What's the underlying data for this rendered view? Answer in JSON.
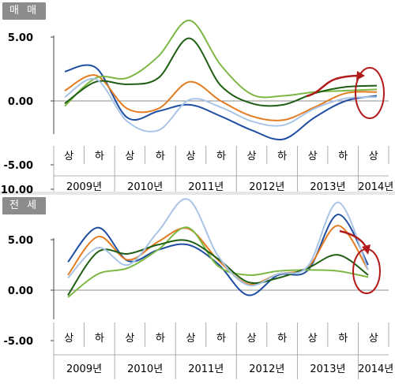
{
  "chart_data": [
    {
      "type": "line",
      "title": "매 매",
      "ylim": [
        -5,
        10
      ],
      "yticks": [
        "10.00",
        "5.00",
        "0.00",
        "-5.00"
      ],
      "x": [
        "2009 상",
        "2009 하",
        "2010 상",
        "2010 하",
        "2011 상",
        "2011 하",
        "2012 상",
        "2012 하",
        "2013 상",
        "2013 하",
        "2014 상"
      ],
      "half_labels": [
        "상",
        "하",
        "상",
        "하",
        "상",
        "하",
        "상",
        "하",
        "상",
        "하",
        "상"
      ],
      "year_labels": [
        "2009년",
        "2010년",
        "2011년",
        "2012년",
        "2013년",
        "2014년"
      ],
      "grid": false,
      "legend": "none",
      "series": [
        {
          "color": "#1f4ea3",
          "values": [
            2.3,
            2.6,
            -1.3,
            -0.8,
            -0.3,
            -1.2,
            -2.3,
            -3.0,
            -1.3,
            0.0,
            0.4
          ]
        },
        {
          "color": "#e37c21",
          "values": [
            0.8,
            2.0,
            -0.6,
            -0.6,
            1.5,
            0.0,
            -1.2,
            -1.5,
            -0.5,
            0.6,
            0.7
          ]
        },
        {
          "color": "#7db844",
          "values": [
            -0.4,
            1.8,
            1.8,
            3.5,
            6.3,
            2.8,
            0.5,
            0.4,
            0.7,
            0.8,
            0.9
          ]
        },
        {
          "color": "#1e5e12",
          "values": [
            -0.2,
            1.5,
            1.3,
            1.8,
            4.9,
            1.2,
            -0.2,
            -0.3,
            0.6,
            1.1,
            1.2
          ]
        },
        {
          "color": "#a9c4e6",
          "values": [
            0.3,
            1.7,
            -1.6,
            -2.3,
            0.1,
            -0.5,
            -1.6,
            -1.9,
            -0.6,
            0.2,
            0.3
          ]
        }
      ]
    },
    {
      "type": "line",
      "title": "전 세",
      "ylim": [
        -5,
        10
      ],
      "yticks": [
        "10.00",
        "5.00",
        "0.00",
        "-5.00"
      ],
      "x": [
        "2009 상",
        "2009 하",
        "2010 상",
        "2010 하",
        "2011 상",
        "2011 하",
        "2012 상",
        "2012 하",
        "2013 상",
        "2013 하",
        "2014 상"
      ],
      "half_labels": [
        "상",
        "하",
        "상",
        "하",
        "상",
        "하",
        "상",
        "하",
        "상",
        "하",
        "상"
      ],
      "year_labels": [
        "2009년",
        "2010년",
        "2011년",
        "2012년",
        "2013년",
        "2014년"
      ],
      "grid": false,
      "legend": "none",
      "series": [
        {
          "color": "#1f4ea3",
          "values": [
            2.8,
            6.2,
            2.9,
            4.0,
            4.5,
            2.6,
            -0.5,
            1.5,
            2.0,
            7.5,
            2.5
          ]
        },
        {
          "color": "#e37c21",
          "values": [
            1.5,
            5.3,
            3.0,
            4.8,
            6.1,
            3.0,
            0.6,
            1.6,
            2.3,
            6.4,
            2.0
          ]
        },
        {
          "color": "#7db844",
          "values": [
            -0.7,
            1.6,
            2.2,
            4.0,
            6.2,
            2.4,
            1.5,
            1.9,
            2.0,
            1.9,
            1.3
          ]
        },
        {
          "color": "#1e5e12",
          "values": [
            -0.5,
            3.8,
            3.6,
            4.5,
            4.9,
            3.1,
            0.8,
            1.2,
            2.2,
            3.5,
            1.5
          ]
        },
        {
          "color": "#a9c4e6",
          "values": [
            1.2,
            4.2,
            2.5,
            5.8,
            9.0,
            3.4,
            0.5,
            1.6,
            2.4,
            8.7,
            2.0
          ]
        }
      ],
      "annotation": "circle-arrow"
    }
  ]
}
